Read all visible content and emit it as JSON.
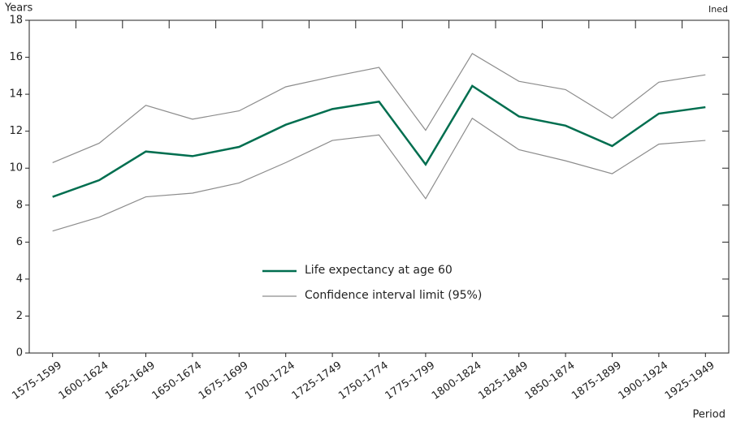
{
  "chart_data": {
    "type": "line",
    "y_label": "Years",
    "x_label": "Period",
    "source": "Ined",
    "categories": [
      "1575-1599",
      "1600-1624",
      "1652-1649",
      "1650-1674",
      "1675-1699",
      "1700-1724",
      "1725-1749",
      "1750-1774",
      "1775-1799",
      "1800-1824",
      "1825-1849",
      "1850-1874",
      "1875-1899",
      "1900-1924",
      "1925-1949"
    ],
    "series": [
      {
        "name": "Life expectancy at age 60",
        "color": "#006e4f",
        "values": [
          8.45,
          9.35,
          10.9,
          10.65,
          11.15,
          12.35,
          13.2,
          13.6,
          10.2,
          14.45,
          12.8,
          12.3,
          11.2,
          12.95,
          13.3
        ]
      },
      {
        "name": "Confidence interval limit (95%)",
        "color": "#8c8c8c",
        "upper": [
          10.3,
          11.35,
          13.4,
          12.65,
          13.1,
          14.4,
          14.95,
          15.45,
          12.05,
          16.2,
          14.7,
          14.25,
          12.7,
          14.65,
          15.05
        ],
        "lower": [
          6.6,
          7.35,
          8.45,
          8.65,
          9.2,
          10.3,
          11.5,
          11.8,
          8.35,
          12.7,
          11.0,
          10.4,
          9.7,
          11.3,
          11.5
        ]
      }
    ],
    "ylim": [
      0,
      18
    ],
    "yticks": [
      0,
      2,
      4,
      6,
      8,
      10,
      12,
      14,
      16,
      18
    ]
  }
}
